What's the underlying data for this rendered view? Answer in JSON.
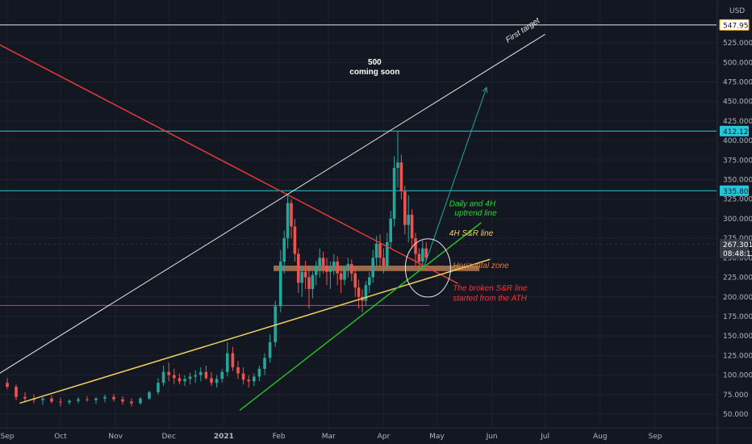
{
  "currency": "USD",
  "chart_data": {
    "type": "candlestick",
    "title": "",
    "xlabel": "",
    "ylabel": "",
    "ylim": [
      40,
      570
    ],
    "y_ticks": [
      {
        "label": "50.000",
        "value": 50
      },
      {
        "label": "75.000",
        "value": 75
      },
      {
        "label": "100.000",
        "value": 100
      },
      {
        "label": "125.000",
        "value": 125
      },
      {
        "label": "150.000",
        "value": 150
      },
      {
        "label": "175.000",
        "value": 175
      },
      {
        "label": "200.000",
        "value": 200
      },
      {
        "label": "225.000",
        "value": 225
      },
      {
        "label": "250.000",
        "value": 250
      },
      {
        "label": "275.000",
        "value": 275
      },
      {
        "label": "300.000",
        "value": 300
      },
      {
        "label": "325.000",
        "value": 325
      },
      {
        "label": "350.000",
        "value": 350
      },
      {
        "label": "375.000",
        "value": 375
      },
      {
        "label": "400.000",
        "value": 400
      },
      {
        "label": "425.000",
        "value": 425
      },
      {
        "label": "450.000",
        "value": 450
      },
      {
        "label": "475.000",
        "value": 475
      },
      {
        "label": "500.000",
        "value": 500
      },
      {
        "label": "525.000",
        "value": 525
      }
    ],
    "x_ticks": [
      {
        "label": "Sep",
        "t": 0
      },
      {
        "label": "Oct",
        "t": 30
      },
      {
        "label": "Nov",
        "t": 61
      },
      {
        "label": "Dec",
        "t": 91
      },
      {
        "label": "2021",
        "t": 122,
        "bold": true
      },
      {
        "label": "Feb",
        "t": 153
      },
      {
        "label": "Mar",
        "t": 181
      },
      {
        "label": "Apr",
        "t": 212
      },
      {
        "label": "May",
        "t": 242
      },
      {
        "label": "Jun",
        "t": 273
      },
      {
        "label": "Jul",
        "t": 303
      },
      {
        "label": "Aug",
        "t": 334
      },
      {
        "label": "Sep",
        "t": 365
      }
    ],
    "price_labels": [
      {
        "text": "547.957",
        "value": 547.957,
        "bg": "#ffffff",
        "fg": "#131722",
        "outline": "#f0b90b"
      },
      {
        "text": "412.120",
        "value": 412.12,
        "bg": "#26c6da",
        "fg": "#131722"
      },
      {
        "text": "335.800",
        "value": 335.8,
        "bg": "#26c6da",
        "fg": "#131722"
      },
      {
        "text": "267.301",
        "value": 267.301,
        "bg": "#363a45",
        "fg": "#ffffff",
        "sub": "08:48:12"
      }
    ],
    "hlines": [
      {
        "value": 547.957,
        "color": "#e6e6e6",
        "x_end_t": 400
      },
      {
        "value": 412.12,
        "color": "#26c6da",
        "x_end_t": 400
      },
      {
        "value": 335.8,
        "color": "#26c6da",
        "x_end_t": 400
      },
      {
        "value": 267.301,
        "color": "#2a2e39",
        "x_end_t": 400,
        "dashed": true
      },
      {
        "value": 189,
        "color": "#7e57c2",
        "x_end_t": 238
      }
    ],
    "trendlines": [
      {
        "t1": -8,
        "v1": 527,
        "t2": 254,
        "v2": 217,
        "color": "#e53935",
        "width": 1.5
      },
      {
        "t1": -8,
        "v1": 97,
        "t2": 303,
        "v2": 536,
        "color": "#e6e6e6",
        "width": 1
      },
      {
        "t1": 7,
        "v1": 64,
        "t2": 272,
        "v2": 248,
        "color": "#f0d060",
        "width": 1.5
      },
      {
        "t1": 131,
        "v1": 55,
        "t2": 267,
        "v2": 295,
        "color": "#22c022",
        "width": 1.5
      }
    ],
    "arrow": {
      "t1": 235,
      "v1": 240,
      "t2": 270,
      "v2": 468,
      "color": "#26a69a"
    },
    "zone": {
      "t1": 150,
      "t2": 266,
      "v1": 233,
      "v2": 240,
      "color": "#c98a5a"
    },
    "circle": {
      "t": 237,
      "v": 237,
      "rx": 28,
      "ry": 36
    },
    "ohlc": [
      [
        0,
        90,
        96,
        82,
        85
      ],
      [
        5,
        85,
        88,
        68,
        72
      ],
      [
        10,
        72,
        78,
        65,
        70
      ],
      [
        15,
        70,
        75,
        64,
        68
      ],
      [
        20,
        68,
        72,
        62,
        70
      ],
      [
        25,
        70,
        74,
        64,
        66
      ],
      [
        30,
        66,
        71,
        60,
        65
      ],
      [
        35,
        65,
        69,
        62,
        67
      ],
      [
        40,
        67,
        72,
        64,
        69
      ],
      [
        45,
        69,
        73,
        66,
        68
      ],
      [
        50,
        68,
        72,
        63,
        70
      ],
      [
        55,
        70,
        75,
        65,
        72
      ],
      [
        60,
        72,
        76,
        66,
        69
      ],
      [
        65,
        69,
        73,
        62,
        66
      ],
      [
        70,
        66,
        70,
        60,
        64
      ],
      [
        75,
        64,
        72,
        62,
        70
      ],
      [
        80,
        70,
        80,
        68,
        78
      ],
      [
        85,
        78,
        96,
        75,
        90
      ],
      [
        88,
        90,
        112,
        86,
        104
      ],
      [
        91,
        104,
        116,
        92,
        100
      ],
      [
        94,
        100,
        108,
        88,
        96
      ],
      [
        97,
        96,
        102,
        88,
        92
      ],
      [
        100,
        92,
        100,
        86,
        95
      ],
      [
        103,
        95,
        103,
        88,
        98
      ],
      [
        106,
        98,
        106,
        90,
        100
      ],
      [
        109,
        100,
        110,
        92,
        104
      ],
      [
        112,
        104,
        112,
        94,
        96
      ],
      [
        115,
        96,
        104,
        86,
        90
      ],
      [
        118,
        90,
        100,
        84,
        95
      ],
      [
        121,
        95,
        108,
        90,
        104
      ],
      [
        124,
        104,
        142,
        98,
        128
      ],
      [
        127,
        128,
        136,
        105,
        110
      ],
      [
        130,
        110,
        118,
        95,
        102
      ],
      [
        133,
        102,
        110,
        88,
        94
      ],
      [
        136,
        94,
        100,
        84,
        92
      ],
      [
        139,
        92,
        102,
        86,
        98
      ],
      [
        142,
        98,
        112,
        92,
        108
      ],
      [
        145,
        108,
        128,
        100,
        122
      ],
      [
        148,
        122,
        152,
        116,
        142
      ],
      [
        151,
        142,
        195,
        136,
        188
      ],
      [
        154,
        188,
        260,
        180,
        245
      ],
      [
        156,
        245,
        285,
        230,
        275
      ],
      [
        158,
        275,
        332,
        262,
        320
      ],
      [
        160,
        320,
        325,
        275,
        290
      ],
      [
        162,
        290,
        300,
        245,
        255
      ],
      [
        164,
        255,
        262,
        205,
        218
      ],
      [
        166,
        218,
        240,
        200,
        232
      ],
      [
        168,
        232,
        246,
        210,
        225
      ],
      [
        170,
        225,
        240,
        185,
        210
      ],
      [
        172,
        210,
        232,
        198,
        228
      ],
      [
        174,
        228,
        246,
        215,
        240
      ],
      [
        176,
        240,
        262,
        225,
        250
      ],
      [
        178,
        250,
        258,
        230,
        240
      ],
      [
        180,
        240,
        250,
        215,
        232
      ],
      [
        182,
        232,
        245,
        210,
        238
      ],
      [
        184,
        238,
        255,
        228,
        245
      ],
      [
        186,
        245,
        252,
        215,
        230
      ],
      [
        188,
        230,
        240,
        205,
        222
      ],
      [
        190,
        222,
        240,
        215,
        236
      ],
      [
        192,
        236,
        250,
        225,
        242
      ],
      [
        194,
        242,
        248,
        220,
        230
      ],
      [
        196,
        230,
        238,
        200,
        212
      ],
      [
        198,
        212,
        222,
        185,
        200
      ],
      [
        200,
        200,
        210,
        180,
        195
      ],
      [
        202,
        195,
        220,
        188,
        215
      ],
      [
        204,
        215,
        232,
        205,
        225
      ],
      [
        206,
        225,
        260,
        218,
        250
      ],
      [
        208,
        250,
        278,
        240,
        268
      ],
      [
        210,
        268,
        280,
        240,
        250
      ],
      [
        212,
        250,
        262,
        230,
        240
      ],
      [
        214,
        240,
        282,
        235,
        270
      ],
      [
        216,
        270,
        310,
        262,
        300
      ],
      [
        218,
        300,
        380,
        290,
        365
      ],
      [
        220,
        365,
        412,
        340,
        372
      ],
      [
        222,
        372,
        382,
        325,
        335
      ],
      [
        224,
        335,
        342,
        280,
        292
      ],
      [
        226,
        292,
        330,
        270,
        305
      ],
      [
        228,
        305,
        312,
        262,
        275
      ],
      [
        230,
        275,
        282,
        240,
        255
      ],
      [
        232,
        255,
        262,
        232,
        245
      ],
      [
        234,
        245,
        272,
        235,
        262
      ],
      [
        236,
        262,
        270,
        245,
        250
      ]
    ],
    "annotations": [
      {
        "text": "500",
        "t": 207,
        "v": 497,
        "color": "#ffffff",
        "italic": false,
        "bold": true
      },
      {
        "text": "coming soon",
        "t": 207,
        "v": 485,
        "color": "#ffffff",
        "italic": false,
        "bold": true
      },
      {
        "text": "First target",
        "t": 282,
        "v": 525,
        "color": "#e6e6e6",
        "rotate": -33
      },
      {
        "text": "Daily and 4H",
        "t": 249,
        "v": 316,
        "color": "#22dd22"
      },
      {
        "text": "uptrend line",
        "t": 252,
        "v": 304,
        "color": "#22dd22"
      },
      {
        "text": "4H S&R line",
        "t": 249,
        "v": 278,
        "color": "#f0d060"
      },
      {
        "text": "Horizontal zone",
        "t": 251,
        "v": 237,
        "color": "#e07a3a"
      },
      {
        "text": "The broken S&R line",
        "t": 251,
        "v": 208,
        "color": "#ff3030"
      },
      {
        "text": "started from the ATH",
        "t": 251,
        "v": 195,
        "color": "#ff3030"
      }
    ]
  }
}
